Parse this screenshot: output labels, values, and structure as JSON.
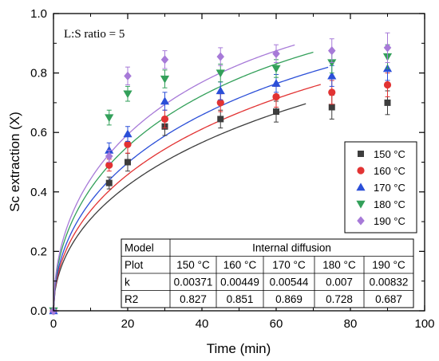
{
  "chart_data": {
    "type": "scatter",
    "xlabel": "Time (min)",
    "ylabel": "Sc extraction (X)",
    "xlim": [
      0,
      100
    ],
    "ylim": [
      0,
      1.0
    ],
    "x_ticks": [
      "0",
      "20",
      "40",
      "60",
      "80",
      "100"
    ],
    "y_ticks": [
      "0.0",
      "0.2",
      "0.4",
      "0.6",
      "0.8",
      "1.0"
    ],
    "annotation": "L:S ratio = 5",
    "legend_position": "right",
    "grid": false,
    "x": [
      0,
      15,
      20,
      30,
      45,
      60,
      75,
      90
    ],
    "series": [
      {
        "name": "150 °C",
        "color": "#3d3d3d",
        "marker": "square",
        "values": [
          0,
          0.43,
          0.5,
          0.62,
          0.645,
          0.67,
          0.685,
          0.7
        ],
        "errors": [
          0,
          0.02,
          0.03,
          0.03,
          0.03,
          0.035,
          0.04,
          0.04
        ],
        "fit_k": 0.00371,
        "fit_xmax": 68
      },
      {
        "name": "160 °C",
        "color": "#e23333",
        "marker": "circle",
        "values": [
          0,
          0.49,
          0.56,
          0.645,
          0.7,
          0.72,
          0.735,
          0.76
        ],
        "errors": [
          0,
          0.02,
          0.03,
          0.03,
          0.03,
          0.035,
          0.04,
          0.04
        ],
        "fit_k": 0.00449,
        "fit_xmax": 72
      },
      {
        "name": "170 °C",
        "color": "#2b4fd8",
        "marker": "triangle-up",
        "values": [
          0,
          0.54,
          0.595,
          0.705,
          0.74,
          0.765,
          0.79,
          0.815
        ],
        "errors": [
          0,
          0.025,
          0.025,
          0.03,
          0.03,
          0.03,
          0.035,
          0.04
        ],
        "fit_k": 0.00544,
        "fit_xmax": 74
      },
      {
        "name": "180 °C",
        "color": "#33a05a",
        "marker": "triangle-down",
        "values": [
          0,
          0.65,
          0.73,
          0.78,
          0.8,
          0.815,
          0.835,
          0.855
        ],
        "errors": [
          0,
          0.025,
          0.025,
          0.03,
          0.03,
          0.03,
          0.035,
          0.04
        ],
        "fit_k": 0.007,
        "fit_xmax": 70
      },
      {
        "name": "190 °C",
        "color": "#a77ad8",
        "marker": "diamond",
        "values": [
          0,
          0.52,
          0.79,
          0.845,
          0.855,
          0.865,
          0.875,
          0.885
        ],
        "errors": [
          0,
          0.02,
          0.03,
          0.03,
          0.03,
          0.03,
          0.04,
          0.05
        ],
        "fit_k": 0.00832,
        "fit_xmax": 65
      }
    ],
    "table": {
      "model_label": "Model",
      "model_value": "Internal diffusion",
      "rows": [
        {
          "label": "Plot",
          "cells": [
            "150 °C",
            "160 °C",
            "170 °C",
            "180 °C",
            "190 °C"
          ]
        },
        {
          "label": "k",
          "cells": [
            "0.00371",
            "0.00449",
            "0.00544",
            "0.007",
            "0.00832"
          ]
        },
        {
          "label": "R2",
          "cells": [
            "0.827",
            "0.851",
            "0.869",
            "0.728",
            "0.687"
          ]
        }
      ]
    }
  }
}
